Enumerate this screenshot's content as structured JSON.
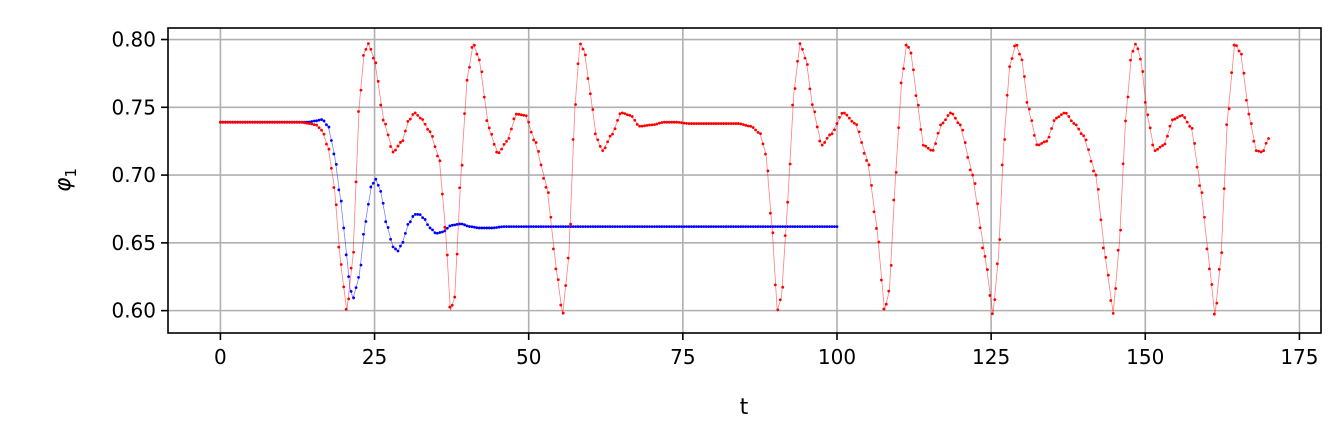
{
  "chart_data": {
    "type": "scatter",
    "xlabel": "t",
    "ylabel": "φ",
    "ylabel_subscript": "1",
    "xlim": [
      -8.5,
      178.5
    ],
    "ylim": [
      0.5835,
      0.8085
    ],
    "xticks": [
      0,
      25,
      50,
      75,
      100,
      125,
      150,
      175
    ],
    "xtick_labels": [
      "0",
      "25",
      "50",
      "75",
      "100",
      "125",
      "150",
      "175"
    ],
    "yticks": [
      0.6,
      0.65,
      0.7,
      0.75,
      0.8
    ],
    "ytick_labels": [
      "0.60",
      "0.65",
      "0.70",
      "0.75",
      "0.80"
    ],
    "grid": true,
    "series": [
      {
        "color": "#0000ff",
        "marker": "dots",
        "x": [
          0,
          14,
          15.5,
          16.5,
          17.5,
          18.5,
          19.5,
          20.5,
          21,
          21.5,
          22.5,
          23.5,
          24.5,
          25.2,
          26,
          27,
          28,
          28.8,
          29.5,
          30.5,
          31.5,
          32.3,
          33,
          34,
          35,
          36,
          37.5,
          39,
          40.5,
          42,
          44,
          46,
          48,
          50,
          100
        ],
        "y": [
          0.739,
          0.739,
          0.74,
          0.741,
          0.736,
          0.715,
          0.682,
          0.64,
          0.617,
          0.609,
          0.625,
          0.665,
          0.692,
          0.697,
          0.688,
          0.663,
          0.647,
          0.644,
          0.65,
          0.664,
          0.671,
          0.671,
          0.668,
          0.661,
          0.657,
          0.658,
          0.663,
          0.664,
          0.662,
          0.661,
          0.661,
          0.662,
          0.662,
          0.662,
          0.662
        ]
      },
      {
        "color": "#ff0000",
        "marker": "dots",
        "x": [
          0,
          13,
          14.5,
          15.5,
          16.5,
          17.5,
          18.5,
          19.5,
          20.5,
          21.5,
          22.5,
          23.3,
          24,
          25,
          26.5,
          28,
          29.5,
          30.5,
          31.5,
          32.5,
          34,
          35.5,
          36.5,
          37.3,
          38,
          39,
          40,
          41,
          42,
          43.5,
          45,
          46.5,
          48,
          49.5,
          51,
          53,
          54.5,
          55.5,
          56.5,
          57.5,
          58.3,
          59,
          60,
          61,
          62,
          63.5,
          65,
          66.5,
          68,
          70,
          72,
          74,
          76,
          80,
          84,
          86,
          87.5,
          88.5,
          89.5,
          90.3,
          91,
          92,
          93,
          94,
          95,
          96,
          97.5,
          99,
          101,
          103,
          105,
          106.5,
          107.7,
          108.5,
          109.5,
          110.5,
          111.3,
          112,
          113,
          114,
          115.5,
          117,
          118.5,
          120,
          122,
          124,
          125.3,
          126.2,
          127,
          128,
          129,
          130,
          131,
          132.5,
          134,
          135.5,
          137,
          138.5,
          140,
          142,
          143.5,
          144.8,
          145.8,
          146.8,
          147.8,
          148.5,
          149.3,
          150.3,
          151.5,
          153,
          154.5,
          156,
          157.5,
          159,
          160.5,
          161.3,
          162.3,
          163.3,
          164.5,
          165.5,
          166.8,
          168,
          169,
          170
        ],
        "y": [
          0.739,
          0.739,
          0.738,
          0.737,
          0.733,
          0.72,
          0.69,
          0.635,
          0.6,
          0.64,
          0.75,
          0.79,
          0.797,
          0.785,
          0.74,
          0.717,
          0.725,
          0.74,
          0.746,
          0.742,
          0.732,
          0.712,
          0.66,
          0.6,
          0.61,
          0.7,
          0.77,
          0.797,
          0.785,
          0.735,
          0.716,
          0.725,
          0.745,
          0.744,
          0.725,
          0.69,
          0.63,
          0.597,
          0.64,
          0.75,
          0.797,
          0.792,
          0.76,
          0.727,
          0.718,
          0.73,
          0.746,
          0.744,
          0.736,
          0.737,
          0.739,
          0.739,
          0.738,
          0.738,
          0.738,
          0.736,
          0.731,
          0.715,
          0.66,
          0.6,
          0.61,
          0.68,
          0.76,
          0.797,
          0.785,
          0.752,
          0.722,
          0.73,
          0.746,
          0.738,
          0.71,
          0.66,
          0.6,
          0.615,
          0.7,
          0.77,
          0.797,
          0.79,
          0.755,
          0.722,
          0.718,
          0.738,
          0.746,
          0.737,
          0.7,
          0.64,
          0.597,
          0.64,
          0.72,
          0.78,
          0.797,
          0.785,
          0.75,
          0.722,
          0.725,
          0.742,
          0.746,
          0.738,
          0.729,
          0.7,
          0.64,
          0.598,
          0.65,
          0.74,
          0.79,
          0.797,
          0.785,
          0.745,
          0.718,
          0.722,
          0.741,
          0.744,
          0.735,
          0.69,
          0.63,
          0.596,
          0.64,
          0.74,
          0.797,
          0.79,
          0.745,
          0.718,
          0.717,
          0.727
        ]
      }
    ]
  }
}
